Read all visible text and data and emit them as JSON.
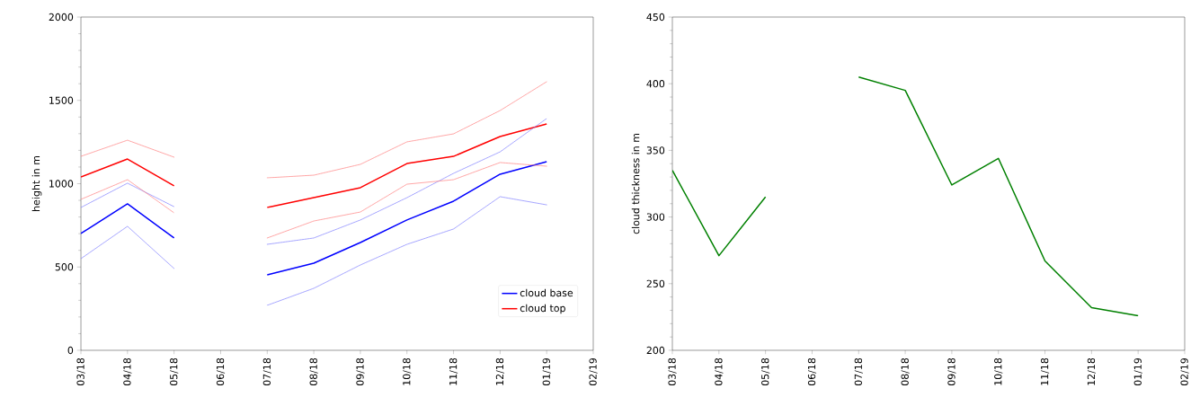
{
  "chart_data": [
    {
      "type": "line",
      "ylabel": "height in m",
      "categories": [
        "03/18",
        "04/18",
        "05/18",
        "06/18",
        "07/18",
        "08/18",
        "09/18",
        "10/18",
        "11/18",
        "12/18",
        "01/19",
        "02/19"
      ],
      "ylim": [
        0,
        2000
      ],
      "yticks": [
        0,
        500,
        1000,
        1500,
        2000
      ],
      "legend": "bottom right",
      "series": [
        {
          "name": "cloud base",
          "color": "#0000ff",
          "values": [
            701,
            879,
            674,
            null,
            453,
            523,
            647,
            782,
            895,
            1057,
            1132,
            null
          ]
        },
        {
          "name": "cloud top",
          "color": "#ff0000",
          "values": [
            1040,
            1148,
            987,
            null,
            857,
            916,
            976,
            1121,
            1164,
            1283,
            1358,
            null
          ]
        },
        {
          "color": "#8080ff",
          "line_style": "dashed",
          "values": [
            550,
            744,
            491,
            null,
            270,
            372,
            512,
            636,
            728,
            922,
            873,
            null
          ]
        },
        {
          "color": "#8080ff",
          "line_style": "dashed",
          "values": [
            857,
            1003,
            862,
            null,
            636,
            674,
            782,
            916,
            1062,
            1191,
            1391,
            null
          ]
        },
        {
          "color": "#ff8080",
          "line_style": "dashed",
          "values": [
            906,
            1024,
            825,
            null,
            674,
            776,
            830,
            997,
            1024,
            1127,
            1105,
            null
          ]
        },
        {
          "color": "#ff8080",
          "line_style": "dashed",
          "values": [
            1164,
            1261,
            1159,
            null,
            1035,
            1051,
            1116,
            1251,
            1299,
            1439,
            1612,
            null
          ]
        }
      ]
    },
    {
      "type": "line",
      "ylabel": "cloud thickness in m",
      "categories": [
        "03/18",
        "04/18",
        "05/18",
        "06/18",
        "07/18",
        "08/18",
        "09/18",
        "10/18",
        "11/18",
        "12/18",
        "01/19",
        "02/19"
      ],
      "ylim": [
        200,
        450
      ],
      "yticks": [
        200,
        250,
        300,
        350,
        400,
        450
      ],
      "series": [
        {
          "color": "#008000",
          "values": [
            335,
            271,
            315,
            null,
            405,
            395,
            324,
            344,
            267,
            232,
            226,
            null
          ]
        }
      ]
    }
  ]
}
